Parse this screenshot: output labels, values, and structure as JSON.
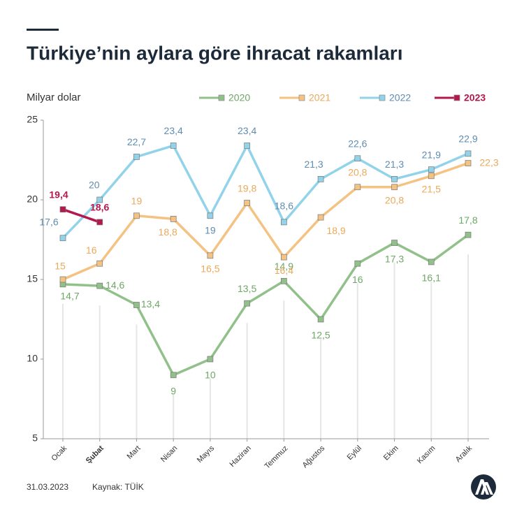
{
  "chart_data": {
    "type": "line",
    "title": "Türkiye’nin aylara göre ihracat rakamları",
    "y_label": "Milyar dolar",
    "date": "31.03.2023",
    "source": "Kaynak: TÜİK",
    "categories": [
      "Ocak",
      "Şubat",
      "Mart",
      "Nisan",
      "Mayıs",
      "Haziran",
      "Temmuz",
      "Ağustos",
      "Eylül",
      "Ekim",
      "Kasım",
      "Aralık"
    ],
    "ylim": [
      5,
      25
    ],
    "yticks": [
      5,
      10,
      15,
      20,
      25
    ],
    "series": [
      {
        "name": "2020",
        "color": "#92c08a",
        "label_color": "#6ea866",
        "values": [
          14.7,
          14.6,
          13.4,
          9,
          10,
          13.5,
          14.9,
          12.5,
          16,
          17.3,
          16.1,
          17.8
        ],
        "value_labels": [
          "14,7",
          "14,6",
          "13,4",
          "9",
          "10",
          "13,5",
          "14,9",
          "12,5",
          "16",
          "17,3",
          "16,1",
          "17,8"
        ]
      },
      {
        "name": "2021",
        "color": "#f4c283",
        "label_color": "#eba95a",
        "values": [
          15,
          16,
          19,
          18.8,
          16.5,
          19.8,
          16.4,
          18.9,
          20.8,
          20.8,
          21.5,
          22.3
        ],
        "value_labels": [
          "15",
          "16",
          "19",
          "18,8",
          "16,5",
          "19,8",
          "16,4",
          "18,9",
          "20,8",
          "20,8",
          "21,5",
          "22,3"
        ]
      },
      {
        "name": "2022",
        "color": "#92d3ea",
        "label_color": "#5f8cb0",
        "values": [
          17.6,
          20,
          22.7,
          23.4,
          19,
          23.4,
          18.6,
          21.3,
          22.6,
          21.3,
          21.9,
          22.9
        ],
        "value_labels": [
          "17,6",
          "20",
          "22,7",
          "23,4",
          "19",
          "23,4",
          "18,6",
          "21,3",
          "22,6",
          "21,3",
          "21,9",
          "22,9"
        ]
      },
      {
        "name": "2023",
        "color": "#b3184f",
        "label_color": "#b3184f",
        "bold": true,
        "values": [
          19.4,
          18.6,
          null,
          null,
          null,
          null,
          null,
          null,
          null,
          null,
          null,
          null
        ],
        "value_labels": [
          "19,4",
          "18,6",
          null,
          null,
          null,
          null,
          null,
          null,
          null,
          null,
          null,
          null
        ]
      }
    ]
  }
}
